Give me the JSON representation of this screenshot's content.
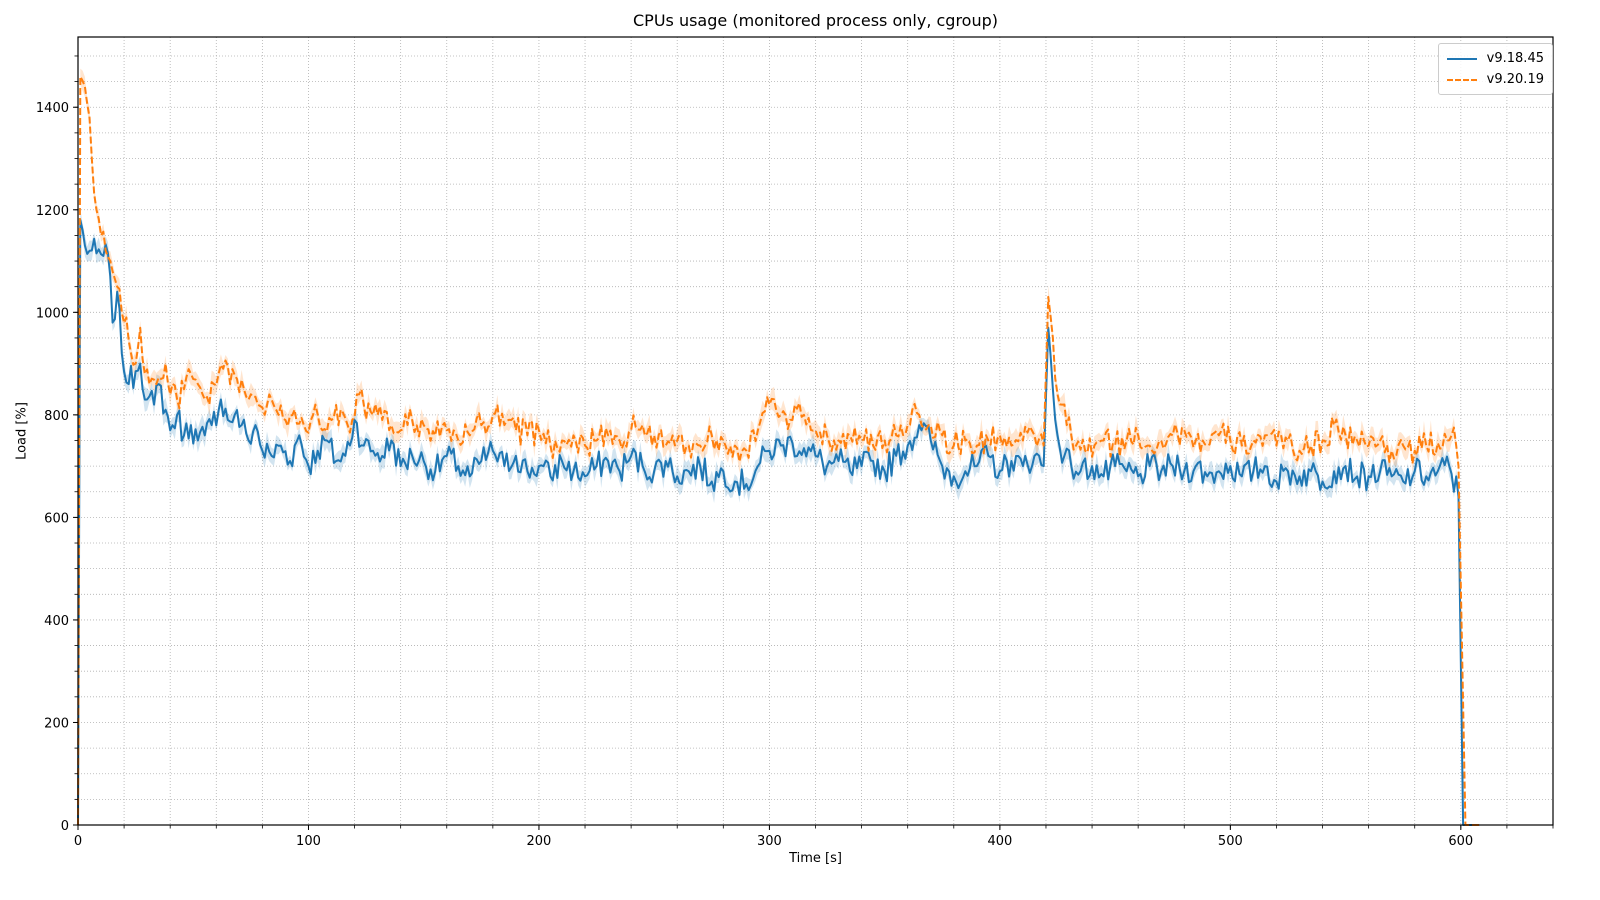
{
  "chart_data": {
    "type": "line",
    "title": "CPUs usage (monitored process only, cgroup)",
    "xlabel": "Time [s]",
    "ylabel": "Load [%]",
    "xlim": [
      0,
      640
    ],
    "ylim": [
      0,
      1537
    ],
    "x_ticks": [
      0,
      100,
      200,
      300,
      400,
      500,
      600
    ],
    "x_tick_labels": [
      "0",
      "100",
      "200",
      "300",
      "400",
      "500",
      "600"
    ],
    "x_minor_step": 20,
    "y_ticks": [
      0,
      200,
      400,
      600,
      800,
      1000,
      1200,
      1400
    ],
    "y_tick_labels": [
      "0",
      "200",
      "400",
      "600",
      "800",
      "1000",
      "1200",
      "1400"
    ],
    "y_minor_step": 50,
    "grid": true,
    "grid_style": "dotted, major and minor",
    "legend_position": "upper right",
    "shaded_confidence_band": true,
    "series": [
      {
        "name": "v9.18.45",
        "color": "#1f77b4",
        "style": "solid",
        "points": [
          [
            0,
            0
          ],
          [
            1,
            1180
          ],
          [
            3,
            1130
          ],
          [
            5,
            1120
          ],
          [
            8,
            1115
          ],
          [
            11,
            1110
          ],
          [
            13,
            1115
          ],
          [
            15,
            980
          ],
          [
            17,
            1040
          ],
          [
            19,
            920
          ],
          [
            22,
            860
          ],
          [
            25,
            885
          ],
          [
            27,
            900
          ],
          [
            30,
            830
          ],
          [
            33,
            820
          ],
          [
            35,
            860
          ],
          [
            38,
            810
          ],
          [
            40,
            770
          ],
          [
            43,
            800
          ],
          [
            46,
            760
          ],
          [
            49,
            780
          ],
          [
            52,
            750
          ],
          [
            55,
            760
          ],
          [
            58,
            780
          ],
          [
            62,
            830
          ],
          [
            65,
            790
          ],
          [
            68,
            800
          ],
          [
            71,
            780
          ],
          [
            74,
            750
          ],
          [
            77,
            780
          ],
          [
            80,
            730
          ],
          [
            84,
            720
          ],
          [
            88,
            740
          ],
          [
            92,
            710
          ],
          [
            96,
            760
          ],
          [
            100,
            700
          ],
          [
            104,
            730
          ],
          [
            108,
            750
          ],
          [
            112,
            710
          ],
          [
            116,
            720
          ],
          [
            120,
            790
          ],
          [
            124,
            740
          ],
          [
            128,
            730
          ],
          [
            132,
            720
          ],
          [
            136,
            750
          ],
          [
            140,
            700
          ],
          [
            145,
            720
          ],
          [
            150,
            710
          ],
          [
            155,
            690
          ],
          [
            160,
            720
          ],
          [
            165,
            700
          ],
          [
            170,
            680
          ],
          [
            175,
            710
          ],
          [
            180,
            730
          ],
          [
            185,
            700
          ],
          [
            190,
            720
          ],
          [
            195,
            690
          ],
          [
            200,
            700
          ],
          [
            205,
            680
          ],
          [
            210,
            710
          ],
          [
            215,
            690
          ],
          [
            220,
            680
          ],
          [
            225,
            700
          ],
          [
            230,
            710
          ],
          [
            235,
            690
          ],
          [
            240,
            720
          ],
          [
            245,
            700
          ],
          [
            250,
            690
          ],
          [
            255,
            710
          ],
          [
            260,
            680
          ],
          [
            265,
            690
          ],
          [
            270,
            700
          ],
          [
            275,
            670
          ],
          [
            280,
            690
          ],
          [
            285,
            670
          ],
          [
            290,
            665
          ],
          [
            295,
            700
          ],
          [
            300,
            730
          ],
          [
            305,
            740
          ],
          [
            310,
            745
          ],
          [
            315,
            735
          ],
          [
            320,
            720
          ],
          [
            325,
            700
          ],
          [
            330,
            710
          ],
          [
            335,
            690
          ],
          [
            340,
            700
          ],
          [
            345,
            710
          ],
          [
            350,
            690
          ],
          [
            355,
            720
          ],
          [
            360,
            740
          ],
          [
            365,
            780
          ],
          [
            370,
            750
          ],
          [
            375,
            700
          ],
          [
            380,
            680
          ],
          [
            385,
            690
          ],
          [
            390,
            700
          ],
          [
            395,
            720
          ],
          [
            400,
            690
          ],
          [
            405,
            710
          ],
          [
            410,
            700
          ],
          [
            415,
            720
          ],
          [
            419,
            700
          ],
          [
            421,
            970
          ],
          [
            423,
            850
          ],
          [
            425,
            760
          ],
          [
            428,
            720
          ],
          [
            431,
            700
          ],
          [
            435,
            690
          ],
          [
            440,
            700
          ],
          [
            445,
            680
          ],
          [
            450,
            700
          ],
          [
            455,
            690
          ],
          [
            460,
            680
          ],
          [
            465,
            700
          ],
          [
            470,
            690
          ],
          [
            475,
            700
          ],
          [
            480,
            690
          ],
          [
            485,
            700
          ],
          [
            490,
            680
          ],
          [
            495,
            690
          ],
          [
            500,
            700
          ],
          [
            505,
            680
          ],
          [
            510,
            690
          ],
          [
            515,
            700
          ],
          [
            520,
            670
          ],
          [
            525,
            690
          ],
          [
            530,
            680
          ],
          [
            535,
            690
          ],
          [
            540,
            670
          ],
          [
            545,
            690
          ],
          [
            550,
            700
          ],
          [
            555,
            680
          ],
          [
            560,
            680
          ],
          [
            565,
            690
          ],
          [
            570,
            680
          ],
          [
            575,
            670
          ],
          [
            580,
            690
          ],
          [
            585,
            680
          ],
          [
            590,
            690
          ],
          [
            595,
            700
          ],
          [
            597,
            650
          ],
          [
            598,
            680
          ],
          [
            599,
            640
          ],
          [
            601,
            0
          ],
          [
            608,
            0
          ]
        ]
      },
      {
        "name": "v9.20.19",
        "color": "#ff7f0e",
        "style": "dashed",
        "points": [
          [
            0,
            0
          ],
          [
            1,
            1460
          ],
          [
            3,
            1440
          ],
          [
            5,
            1380
          ],
          [
            6,
            1300
          ],
          [
            8,
            1200
          ],
          [
            10,
            1150
          ],
          [
            12,
            1120
          ],
          [
            14,
            1100
          ],
          [
            15,
            1080
          ],
          [
            17,
            1050
          ],
          [
            19,
            1000
          ],
          [
            21,
            990
          ],
          [
            23,
            920
          ],
          [
            25,
            900
          ],
          [
            27,
            970
          ],
          [
            29,
            880
          ],
          [
            31,
            860
          ],
          [
            34,
            860
          ],
          [
            36,
            870
          ],
          [
            38,
            900
          ],
          [
            40,
            840
          ],
          [
            43,
            830
          ],
          [
            46,
            850
          ],
          [
            49,
            880
          ],
          [
            52,
            860
          ],
          [
            55,
            830
          ],
          [
            57,
            820
          ],
          [
            59,
            860
          ],
          [
            61,
            880
          ],
          [
            63,
            890
          ],
          [
            66,
            860
          ],
          [
            69,
            870
          ],
          [
            72,
            850
          ],
          [
            75,
            840
          ],
          [
            78,
            820
          ],
          [
            81,
            800
          ],
          [
            84,
            830
          ],
          [
            87,
            800
          ],
          [
            90,
            790
          ],
          [
            94,
            810
          ],
          [
            98,
            780
          ],
          [
            102,
            800
          ],
          [
            106,
            770
          ],
          [
            110,
            790
          ],
          [
            114,
            810
          ],
          [
            117,
            780
          ],
          [
            119,
            790
          ],
          [
            121,
            840
          ],
          [
            124,
            820
          ],
          [
            128,
            800
          ],
          [
            132,
            790
          ],
          [
            136,
            780
          ],
          [
            140,
            770
          ],
          [
            145,
            790
          ],
          [
            150,
            780
          ],
          [
            155,
            760
          ],
          [
            160,
            770
          ],
          [
            165,
            750
          ],
          [
            170,
            760
          ],
          [
            175,
            780
          ],
          [
            180,
            800
          ],
          [
            185,
            780
          ],
          [
            190,
            770
          ],
          [
            195,
            760
          ],
          [
            200,
            770
          ],
          [
            205,
            740
          ],
          [
            210,
            750
          ],
          [
            215,
            760
          ],
          [
            220,
            740
          ],
          [
            225,
            750
          ],
          [
            230,
            760
          ],
          [
            235,
            750
          ],
          [
            240,
            770
          ],
          [
            245,
            780
          ],
          [
            250,
            760
          ],
          [
            255,
            740
          ],
          [
            260,
            750
          ],
          [
            265,
            740
          ],
          [
            270,
            740
          ],
          [
            275,
            760
          ],
          [
            280,
            750
          ],
          [
            285,
            740
          ],
          [
            290,
            730
          ],
          [
            295,
            770
          ],
          [
            300,
            820
          ],
          [
            305,
            800
          ],
          [
            310,
            790
          ],
          [
            315,
            800
          ],
          [
            320,
            770
          ],
          [
            325,
            760
          ],
          [
            330,
            750
          ],
          [
            335,
            760
          ],
          [
            340,
            750
          ],
          [
            345,
            740
          ],
          [
            350,
            750
          ],
          [
            355,
            760
          ],
          [
            360,
            780
          ],
          [
            362,
            810
          ],
          [
            365,
            800
          ],
          [
            370,
            780
          ],
          [
            375,
            760
          ],
          [
            380,
            740
          ],
          [
            385,
            750
          ],
          [
            390,
            740
          ],
          [
            395,
            750
          ],
          [
            400,
            760
          ],
          [
            405,
            740
          ],
          [
            410,
            750
          ],
          [
            415,
            760
          ],
          [
            419,
            740
          ],
          [
            421,
            1030
          ],
          [
            423,
            950
          ],
          [
            425,
            840
          ],
          [
            427,
            820
          ],
          [
            429,
            780
          ],
          [
            431,
            760
          ],
          [
            433,
            740
          ],
          [
            437,
            730
          ],
          [
            441,
            740
          ],
          [
            445,
            750
          ],
          [
            450,
            740
          ],
          [
            455,
            750
          ],
          [
            460,
            760
          ],
          [
            465,
            740
          ],
          [
            470,
            750
          ],
          [
            475,
            760
          ],
          [
            480,
            770
          ],
          [
            485,
            750
          ],
          [
            490,
            740
          ],
          [
            495,
            760
          ],
          [
            500,
            750
          ],
          [
            505,
            740
          ],
          [
            510,
            750
          ],
          [
            515,
            760
          ],
          [
            520,
            740
          ],
          [
            525,
            750
          ],
          [
            530,
            730
          ],
          [
            535,
            740
          ],
          [
            540,
            750
          ],
          [
            545,
            780
          ],
          [
            550,
            760
          ],
          [
            555,
            750
          ],
          [
            560,
            740
          ],
          [
            565,
            750
          ],
          [
            570,
            730
          ],
          [
            575,
            740
          ],
          [
            580,
            730
          ],
          [
            585,
            740
          ],
          [
            590,
            745
          ],
          [
            594,
            750
          ],
          [
            596,
            760
          ],
          [
            598,
            740
          ],
          [
            599,
            700
          ],
          [
            602,
            0
          ],
          [
            608,
            0
          ]
        ]
      }
    ]
  },
  "legend": {
    "items": [
      {
        "label": "v9.18.45",
        "color": "#1f77b4",
        "style": "solid"
      },
      {
        "label": "v9.20.19",
        "color": "#ff7f0e",
        "style": "dashed"
      }
    ]
  }
}
